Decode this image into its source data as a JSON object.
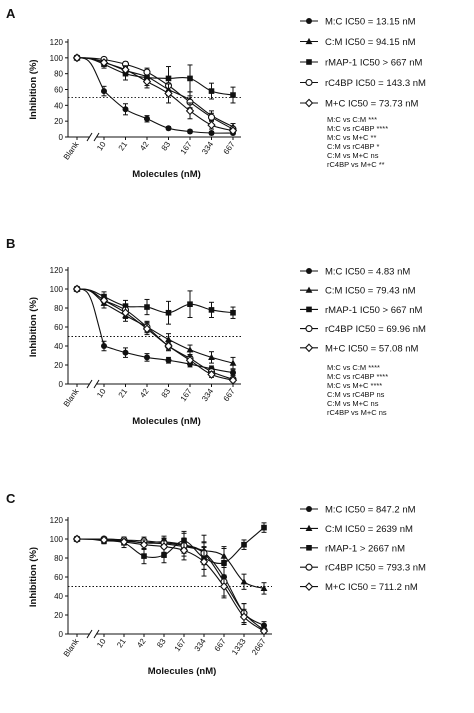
{
  "chart_data": [
    {
      "type": "line",
      "panel": "A",
      "ylabel": "Inhibition (%)",
      "xlabel": "Molecules (nM)",
      "blank_label": "Blank",
      "x": [
        "10",
        "21",
        "42",
        "83",
        "167",
        "334",
        "667"
      ],
      "y_ticks": [
        "0",
        "20",
        "40",
        "60",
        "80",
        "100",
        "120"
      ],
      "ylim": [
        0,
        120
      ],
      "reference_line": 50,
      "series": [
        {
          "name": "M:C IC50 = 13.15 nM",
          "marker": "filled-circle",
          "blank": 100,
          "values": [
            58,
            35,
            23,
            11,
            7,
            5,
            5
          ],
          "errors": [
            6,
            7,
            4,
            2,
            2,
            2,
            2
          ]
        },
        {
          "name": "C:M IC50 = 94.15 nM",
          "marker": "filled-triangle",
          "blank": 100,
          "values": [
            95,
            84,
            76,
            60,
            47,
            27,
            13
          ],
          "errors": [
            4,
            5,
            6,
            8,
            10,
            6,
            4
          ]
        },
        {
          "name": "rMAP-1 IC50 > 667 nM",
          "marker": "filled-square",
          "blank": 100,
          "values": [
            92,
            80,
            75,
            74,
            74,
            58,
            53
          ],
          "errors": [
            5,
            8,
            10,
            15,
            17,
            10,
            10
          ]
        },
        {
          "name": "rC4BP IC50 = 143.3 nM",
          "marker": "open-circle",
          "blank": 100,
          "values": [
            98,
            92,
            82,
            65,
            44,
            25,
            10
          ],
          "errors": [
            2,
            3,
            5,
            8,
            8,
            5,
            3
          ]
        },
        {
          "name": "M+C IC50 = 73.73 nM",
          "marker": "open-diamond",
          "blank": 100,
          "values": [
            94,
            85,
            70,
            55,
            33,
            15,
            8
          ],
          "errors": [
            3,
            5,
            8,
            12,
            10,
            5,
            3
          ]
        }
      ],
      "stats": [
        "M:C vs C:M ***",
        "M:C vs rC4BP ****",
        "M:C vs M+C **",
        "C:M vs rC4BP *",
        "C:M vs M+C ns",
        "rC4BP vs M+C **"
      ]
    },
    {
      "type": "line",
      "panel": "B",
      "ylabel": "Inhibition (%)",
      "xlabel": "Molecules (nM)",
      "blank_label": "Blank",
      "x": [
        "10",
        "21",
        "42",
        "83",
        "167",
        "334",
        "667"
      ],
      "y_ticks": [
        "0",
        "20",
        "40",
        "60",
        "80",
        "100",
        "120"
      ],
      "ylim": [
        0,
        120
      ],
      "reference_line": 50,
      "series": [
        {
          "name": "M:C IC50 = 4.83 nM",
          "marker": "filled-circle",
          "blank": 100,
          "values": [
            40,
            33,
            28,
            25,
            21,
            16,
            12
          ],
          "errors": [
            5,
            5,
            4,
            3,
            3,
            3,
            3
          ]
        },
        {
          "name": "C:M IC50 = 79.43 nM",
          "marker": "filled-triangle",
          "blank": 100,
          "values": [
            85,
            72,
            60,
            47,
            36,
            28,
            22
          ],
          "errors": [
            5,
            6,
            6,
            6,
            5,
            6,
            6
          ]
        },
        {
          "name": "rMAP-1 IC50 > 667 nM",
          "marker": "filled-square",
          "blank": 100,
          "values": [
            92,
            82,
            81,
            75,
            84,
            78,
            75
          ],
          "errors": [
            5,
            6,
            8,
            12,
            14,
            8,
            6
          ]
        },
        {
          "name": "rC4BP IC50 = 69.96 nM",
          "marker": "open-circle",
          "blank": 100,
          "values": [
            88,
            78,
            60,
            40,
            27,
            13,
            5
          ],
          "errors": [
            4,
            5,
            5,
            4,
            4,
            3,
            2
          ]
        },
        {
          "name": "M+C IC50 = 57.08 nM",
          "marker": "open-diamond",
          "blank": 100,
          "values": [
            88,
            75,
            58,
            40,
            25,
            10,
            4
          ],
          "errors": [
            5,
            6,
            6,
            5,
            4,
            3,
            2
          ]
        }
      ],
      "stats": [
        "M:C vs C:M ****",
        "M:C vs rC4BP ****",
        "M:C vs M+C ****",
        "C:M vs rC4BP ns",
        "C:M vs M+C ns",
        "rC4BP vs M+C ns"
      ]
    },
    {
      "type": "line",
      "panel": "C",
      "ylabel": "Inhibition (%)",
      "xlabel": "Molecules (nM)",
      "blank_label": "Blank",
      "x": [
        "10",
        "21",
        "42",
        "83",
        "167",
        "334",
        "667",
        "1333",
        "2667"
      ],
      "y_ticks": [
        "0",
        "20",
        "40",
        "60",
        "80",
        "100",
        "120"
      ],
      "ylim": [
        0,
        120
      ],
      "reference_line": 50,
      "series": [
        {
          "name": "M:C IC50 = 847.2 nM",
          "marker": "filled-circle",
          "blank": 100,
          "values": [
            99,
            98,
            96,
            97,
            94,
            86,
            60,
            22,
            9
          ],
          "errors": [
            2,
            3,
            4,
            6,
            12,
            18,
            20,
            10,
            4
          ]
        },
        {
          "name": "C:M IC50 = 2639 nM",
          "marker": "filled-triangle",
          "blank": 100,
          "values": [
            100,
            99,
            96,
            95,
            92,
            88,
            82,
            55,
            48
          ],
          "errors": [
            2,
            3,
            4,
            5,
            6,
            8,
            10,
            8,
            6
          ]
        },
        {
          "name": "rMAP-1 > 2667 nM",
          "marker": "filled-square",
          "blank": 100,
          "values": [
            98,
            96,
            82,
            83,
            98,
            80,
            75,
            94,
            112
          ],
          "errors": [
            3,
            5,
            8,
            8,
            10,
            12,
            15,
            5,
            5
          ]
        },
        {
          "name": "rC4BP IC50 = 793.3 nM",
          "marker": "open-circle",
          "blank": 100,
          "values": [
            100,
            99,
            98,
            96,
            93,
            85,
            55,
            22,
            4
          ],
          "errors": [
            2,
            3,
            4,
            5,
            8,
            12,
            15,
            10,
            3
          ]
        },
        {
          "name": "M+C IC50 = 711.2 nM",
          "marker": "open-diamond",
          "blank": 100,
          "values": [
            99,
            97,
            94,
            92,
            88,
            76,
            50,
            18,
            3
          ],
          "errors": [
            2,
            3,
            5,
            6,
            10,
            15,
            12,
            8,
            3
          ]
        }
      ],
      "stats": []
    }
  ]
}
